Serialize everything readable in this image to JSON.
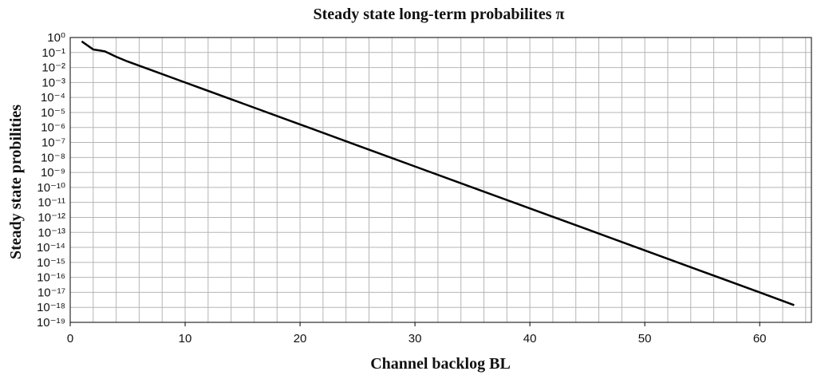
{
  "chart_data": {
    "type": "line",
    "title": "Steady state long-term probabilites π",
    "x_label": "Channel backlog BL",
    "y_label": "Steady state probilities",
    "y_scale": "log",
    "grid": true,
    "xlim": [
      0,
      64.5
    ],
    "xticks": [
      0,
      10,
      20,
      30,
      40,
      50,
      60
    ],
    "xminorticks": [
      0,
      2,
      4,
      6,
      8,
      10,
      12,
      14,
      16,
      18,
      20,
      22,
      24,
      26,
      28,
      30,
      32,
      34,
      36,
      38,
      40,
      42,
      44,
      46,
      48,
      50,
      52,
      54,
      56,
      58,
      60,
      62,
      64
    ],
    "ylim": [
      1e-19,
      1
    ],
    "yticks": [
      {
        "value": 1,
        "label": "10⁰"
      },
      {
        "value": 0.1,
        "label": "10⁻¹"
      },
      {
        "value": 0.01,
        "label": "10⁻²"
      },
      {
        "value": 0.001,
        "label": "10⁻³"
      },
      {
        "value": 0.0001,
        "label": "10⁻⁴"
      },
      {
        "value": 1e-05,
        "label": "10⁻⁵"
      },
      {
        "value": 1e-06,
        "label": "10⁻⁶"
      },
      {
        "value": 1e-07,
        "label": "10⁻⁷"
      },
      {
        "value": 1e-08,
        "label": "10⁻⁸"
      },
      {
        "value": 1e-09,
        "label": "10⁻⁹"
      },
      {
        "value": 1e-10,
        "label": "10⁻¹⁰"
      },
      {
        "value": 1e-11,
        "label": "10⁻¹¹"
      },
      {
        "value": 1e-12,
        "label": "10⁻¹²"
      },
      {
        "value": 1e-13,
        "label": "10⁻¹³"
      },
      {
        "value": 1e-14,
        "label": "10⁻¹⁴"
      },
      {
        "value": 1e-15,
        "label": "10⁻¹⁵"
      },
      {
        "value": 1e-16,
        "label": "10⁻¹⁶"
      },
      {
        "value": 1e-17,
        "label": "10⁻¹⁷"
      },
      {
        "value": 1e-18,
        "label": "10⁻¹⁸"
      },
      {
        "value": 1e-19,
        "label": "10⁻¹⁹"
      }
    ],
    "x": [
      1,
      2,
      3,
      4,
      5,
      7,
      10,
      15,
      20,
      25,
      30,
      35,
      40,
      45,
      50,
      55,
      60,
      63
    ],
    "series": [
      {
        "color": "#000000",
        "values": [
          0.55,
          0.16,
          0.12,
          0.052,
          0.025,
          0.0069,
          0.001,
          4e-05,
          1.6e-06,
          6.3e-08,
          2.5e-09,
          1e-10,
          4e-12,
          1.6e-13,
          6.3e-15,
          2.5e-16,
          1e-17,
          1.4e-18
        ]
      }
    ]
  }
}
